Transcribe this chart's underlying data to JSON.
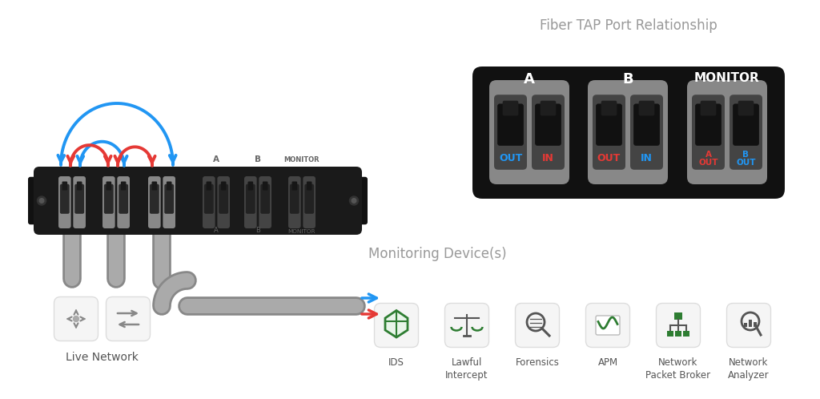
{
  "bg_color": "#ffffff",
  "fiber_tap_title": "Fiber TAP Port Relationship",
  "monitoring_title": "Monitoring Device(s)",
  "live_network_label": "Live Network",
  "blue_color": "#2196F3",
  "red_color": "#e53935",
  "green_color": "#2e7d32",
  "monitoring_devices": [
    "IDS",
    "Lawful\nIntercept",
    "Forensics",
    "APM",
    "Network\nPacket Broker",
    "Network\nAnalyzer"
  ]
}
